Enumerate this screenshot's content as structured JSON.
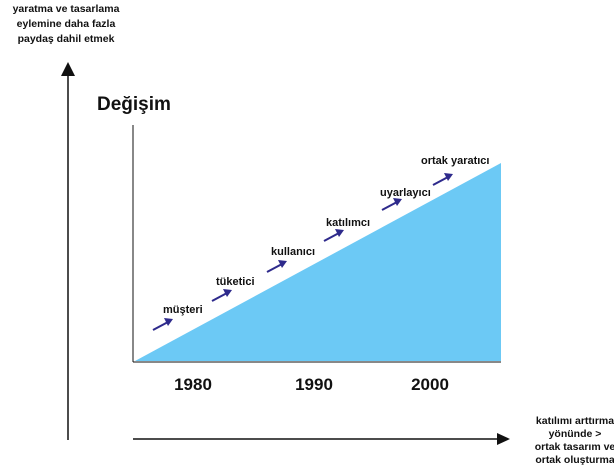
{
  "vertical_axis_label": [
    "yaratma ve tasarlama",
    "eylemine daha fazla",
    "paydaş dahil etmek"
  ],
  "horizontal_axis_label": [
    "katılımı arttırma",
    "yönünde >",
    "ortak tasarım ve",
    "ortak oluşturma"
  ],
  "change_title": "Değişim",
  "years": [
    "1980",
    "1990",
    "2000"
  ],
  "stages": [
    "müşteri",
    "tüketici",
    "kullanıcı",
    "katılımcı",
    "uyarlayıcı",
    "ortak yaratıcı"
  ],
  "colors": {
    "wedge": "#6cc9f5",
    "arrow": "#2e2a8c",
    "axis": "#111111"
  }
}
